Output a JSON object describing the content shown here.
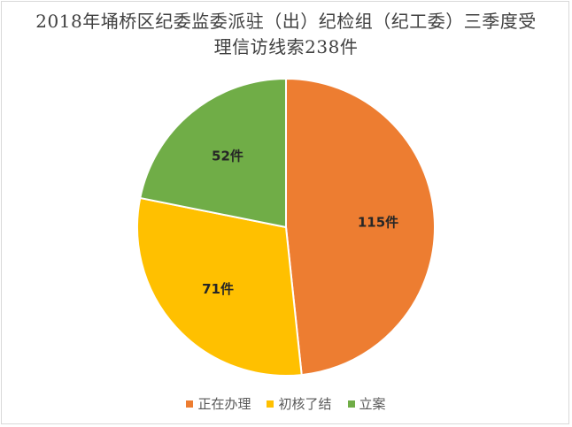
{
  "chart_data": {
    "type": "pie",
    "title": "2018年埇桥区纪委监委派驻（出）纪检组（纪工委）三季度受理信访线索238件",
    "categories": [
      "正在办理",
      "初核了结",
      "立案"
    ],
    "values": [
      115,
      71,
      52
    ],
    "data_labels": [
      "115件",
      "71件",
      "52件"
    ],
    "colors": [
      "#ED7D31",
      "#FFC000",
      "#70AD47"
    ],
    "start_angle": "top (12 o'clock)",
    "direction": "clockwise",
    "legend_position": "bottom"
  }
}
